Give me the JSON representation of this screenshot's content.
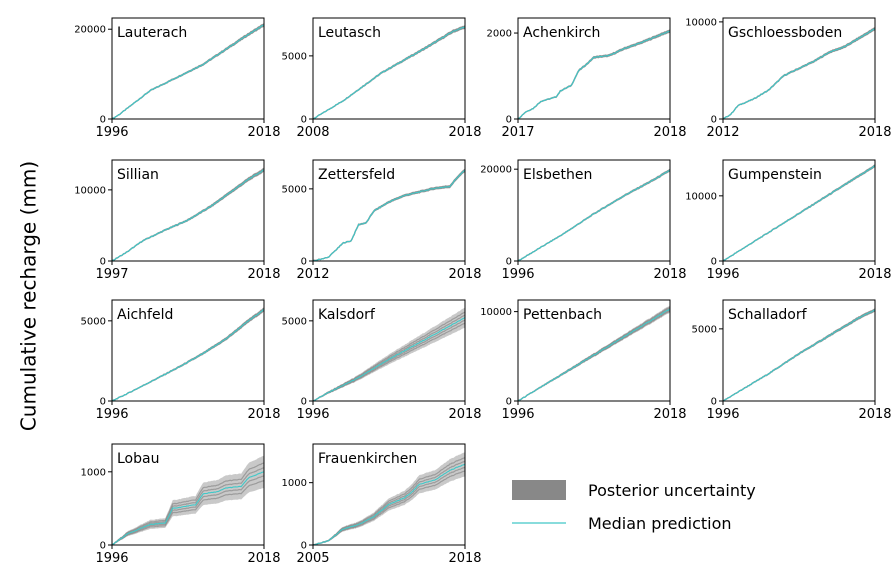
{
  "figure": {
    "ylabel": "Cumulative recharge (mm)",
    "legend": {
      "position": "bottom-right",
      "uncertainty_label": "Posterior uncertainty",
      "median_label": "Median prediction",
      "uncertainty_color": "#888888",
      "median_color": "#40c8c8"
    }
  },
  "chart_data": [
    {
      "type": "line",
      "title": "Lauterach",
      "x": [
        1996,
        2018
      ],
      "xticks": [
        1996,
        2018
      ],
      "yticks": [
        0,
        20000
      ],
      "ylim": [
        0,
        22500
      ],
      "ymax": 21000,
      "uncertainty": 0.02,
      "path": [
        [
          0,
          0
        ],
        [
          0.05,
          0.05
        ],
        [
          0.25,
          0.3
        ],
        [
          0.45,
          0.46
        ],
        [
          0.6,
          0.58
        ],
        [
          0.75,
          0.74
        ],
        [
          0.88,
          0.88
        ],
        [
          1,
          1
        ]
      ]
    },
    {
      "type": "line",
      "title": "Leutasch",
      "x": [
        2008,
        2018
      ],
      "xticks": [
        2008,
        2018
      ],
      "yticks": [
        0,
        5000
      ],
      "ylim": [
        0,
        8000
      ],
      "ymax": 7300,
      "uncertainty": 0.02,
      "path": [
        [
          0,
          0
        ],
        [
          0.08,
          0.08
        ],
        [
          0.2,
          0.2
        ],
        [
          0.3,
          0.32
        ],
        [
          0.45,
          0.5
        ],
        [
          0.6,
          0.64
        ],
        [
          0.75,
          0.78
        ],
        [
          0.85,
          0.88
        ],
        [
          0.92,
          0.95
        ],
        [
          1,
          1
        ]
      ]
    },
    {
      "type": "line",
      "title": "Achenkirch",
      "x": [
        2017,
        2018
      ],
      "xticks": [
        2017,
        2018
      ],
      "yticks": [
        0,
        2000
      ],
      "ylim": [
        0,
        2350
      ],
      "ymax": 2050,
      "uncertainty": 0.02,
      "path": [
        [
          0,
          0
        ],
        [
          0.05,
          0.08
        ],
        [
          0.1,
          0.12
        ],
        [
          0.15,
          0.2
        ],
        [
          0.25,
          0.25
        ],
        [
          0.28,
          0.32
        ],
        [
          0.35,
          0.38
        ],
        [
          0.4,
          0.55
        ],
        [
          0.45,
          0.62
        ],
        [
          0.5,
          0.7
        ],
        [
          0.6,
          0.72
        ],
        [
          0.7,
          0.8
        ],
        [
          0.8,
          0.86
        ],
        [
          0.9,
          0.93
        ],
        [
          1,
          1
        ]
      ]
    },
    {
      "type": "line",
      "title": "Gschloessboden",
      "x": [
        2012,
        2018
      ],
      "xticks": [
        2012,
        2018
      ],
      "yticks": [
        0,
        10000
      ],
      "ylim": [
        0,
        10400
      ],
      "ymax": 9300,
      "uncertainty": 0.02,
      "path": [
        [
          0,
          0
        ],
        [
          0.05,
          0.05
        ],
        [
          0.1,
          0.15
        ],
        [
          0.2,
          0.22
        ],
        [
          0.3,
          0.32
        ],
        [
          0.4,
          0.48
        ],
        [
          0.5,
          0.56
        ],
        [
          0.6,
          0.64
        ],
        [
          0.7,
          0.74
        ],
        [
          0.8,
          0.8
        ],
        [
          0.9,
          0.9
        ],
        [
          1,
          1
        ]
      ]
    },
    {
      "type": "line",
      "title": "Sillian",
      "x": [
        1997,
        2018
      ],
      "xticks": [
        1997,
        2018
      ],
      "yticks": [
        0,
        10000
      ],
      "ylim": [
        0,
        14200
      ],
      "ymax": 12800,
      "uncertainty": 0.025,
      "path": [
        [
          0,
          0
        ],
        [
          0.1,
          0.1
        ],
        [
          0.2,
          0.22
        ],
        [
          0.35,
          0.34
        ],
        [
          0.5,
          0.45
        ],
        [
          0.65,
          0.6
        ],
        [
          0.8,
          0.78
        ],
        [
          0.9,
          0.9
        ],
        [
          1,
          1
        ]
      ]
    },
    {
      "type": "line",
      "title": "Zettersfeld",
      "x": [
        2012,
        2018
      ],
      "xticks": [
        2012,
        2018
      ],
      "yticks": [
        0,
        5000
      ],
      "ylim": [
        0,
        7000
      ],
      "ymax": 6300,
      "uncertainty": 0.02,
      "path": [
        [
          0,
          0
        ],
        [
          0.1,
          0.04
        ],
        [
          0.15,
          0.12
        ],
        [
          0.2,
          0.2
        ],
        [
          0.25,
          0.22
        ],
        [
          0.3,
          0.4
        ],
        [
          0.35,
          0.42
        ],
        [
          0.4,
          0.55
        ],
        [
          0.5,
          0.65
        ],
        [
          0.6,
          0.72
        ],
        [
          0.7,
          0.76
        ],
        [
          0.8,
          0.8
        ],
        [
          0.9,
          0.82
        ],
        [
          0.95,
          0.92
        ],
        [
          1,
          1
        ]
      ]
    },
    {
      "type": "line",
      "title": "Elsbethen",
      "x": [
        1996,
        2018
      ],
      "xticks": [
        1996,
        2018
      ],
      "yticks": [
        0,
        20000
      ],
      "ylim": [
        0,
        22000
      ],
      "ymax": 19800,
      "uncertainty": 0.015,
      "path": [
        [
          0,
          0
        ],
        [
          0.1,
          0.1
        ],
        [
          0.3,
          0.3
        ],
        [
          0.5,
          0.52
        ],
        [
          0.7,
          0.72
        ],
        [
          0.9,
          0.9
        ],
        [
          1,
          1
        ]
      ]
    },
    {
      "type": "line",
      "title": "Gumpenstein",
      "x": [
        1996,
        2018
      ],
      "xticks": [
        1996,
        2018
      ],
      "yticks": [
        0,
        10000
      ],
      "ylim": [
        0,
        15500
      ],
      "ymax": 14600,
      "uncertainty": 0.015,
      "path": [
        [
          0,
          0
        ],
        [
          0.1,
          0.1
        ],
        [
          0.3,
          0.3
        ],
        [
          0.5,
          0.5
        ],
        [
          0.7,
          0.7
        ],
        [
          0.9,
          0.9
        ],
        [
          1,
          1
        ]
      ]
    },
    {
      "type": "line",
      "title": "Aichfeld",
      "x": [
        1996,
        2018
      ],
      "xticks": [
        1996,
        2018
      ],
      "yticks": [
        0,
        5000
      ],
      "ylim": [
        0,
        6300
      ],
      "ymax": 5700,
      "uncertainty": 0.025,
      "path": [
        [
          0,
          0
        ],
        [
          0.1,
          0.08
        ],
        [
          0.3,
          0.25
        ],
        [
          0.45,
          0.38
        ],
        [
          0.6,
          0.52
        ],
        [
          0.75,
          0.68
        ],
        [
          0.9,
          0.88
        ],
        [
          1,
          1
        ]
      ]
    },
    {
      "type": "line",
      "title": "Kalsdorf",
      "x": [
        1996,
        2018
      ],
      "xticks": [
        1996,
        2018
      ],
      "yticks": [
        0,
        5000
      ],
      "ylim": [
        0,
        6300
      ],
      "ymax": 5200,
      "uncertainty": 0.12,
      "path": [
        [
          0,
          0
        ],
        [
          0.1,
          0.1
        ],
        [
          0.3,
          0.28
        ],
        [
          0.5,
          0.5
        ],
        [
          0.7,
          0.7
        ],
        [
          0.9,
          0.9
        ],
        [
          1,
          1
        ]
      ]
    },
    {
      "type": "line",
      "title": "Pettenbach",
      "x": [
        1996,
        2018
      ],
      "xticks": [
        1996,
        2018
      ],
      "yticks": [
        0,
        10000
      ],
      "ylim": [
        0,
        11300
      ],
      "ymax": 10300,
      "uncertainty": 0.04,
      "path": [
        [
          0,
          0
        ],
        [
          0.1,
          0.1
        ],
        [
          0.3,
          0.3
        ],
        [
          0.5,
          0.5
        ],
        [
          0.7,
          0.7
        ],
        [
          0.9,
          0.9
        ],
        [
          1,
          1
        ]
      ]
    },
    {
      "type": "line",
      "title": "Schalladorf",
      "x": [
        1996,
        2018
      ],
      "xticks": [
        1996,
        2018
      ],
      "yticks": [
        0,
        5000
      ],
      "ylim": [
        0,
        7000
      ],
      "ymax": 6300,
      "uncertainty": 0.02,
      "path": [
        [
          0,
          0
        ],
        [
          0.1,
          0.1
        ],
        [
          0.3,
          0.3
        ],
        [
          0.5,
          0.52
        ],
        [
          0.7,
          0.72
        ],
        [
          0.9,
          0.92
        ],
        [
          1,
          1
        ]
      ]
    },
    {
      "type": "line",
      "title": "Lobau",
      "x": [
        1996,
        2018
      ],
      "xticks": [
        1996,
        2018
      ],
      "yticks": [
        0,
        1000
      ],
      "ylim": [
        0,
        1380
      ],
      "ymax": 1000,
      "uncertainty": 0.22,
      "path": [
        [
          0,
          0
        ],
        [
          0.1,
          0.15
        ],
        [
          0.25,
          0.28
        ],
        [
          0.35,
          0.3
        ],
        [
          0.4,
          0.5
        ],
        [
          0.55,
          0.55
        ],
        [
          0.6,
          0.7
        ],
        [
          0.7,
          0.73
        ],
        [
          0.75,
          0.78
        ],
        [
          0.85,
          0.8
        ],
        [
          0.9,
          0.92
        ],
        [
          1,
          1
        ]
      ]
    },
    {
      "type": "line",
      "title": "Frauenkirchen",
      "x": [
        2005,
        2018
      ],
      "xticks": [
        2005,
        2018
      ],
      "yticks": [
        0,
        1000
      ],
      "ylim": [
        0,
        1620
      ],
      "ymax": 1300,
      "uncertainty": 0.15,
      "path": [
        [
          0,
          0
        ],
        [
          0.1,
          0.05
        ],
        [
          0.2,
          0.2
        ],
        [
          0.3,
          0.25
        ],
        [
          0.4,
          0.35
        ],
        [
          0.5,
          0.5
        ],
        [
          0.6,
          0.58
        ],
        [
          0.65,
          0.65
        ],
        [
          0.7,
          0.75
        ],
        [
          0.8,
          0.8
        ],
        [
          0.9,
          0.92
        ],
        [
          1,
          1
        ]
      ]
    }
  ]
}
